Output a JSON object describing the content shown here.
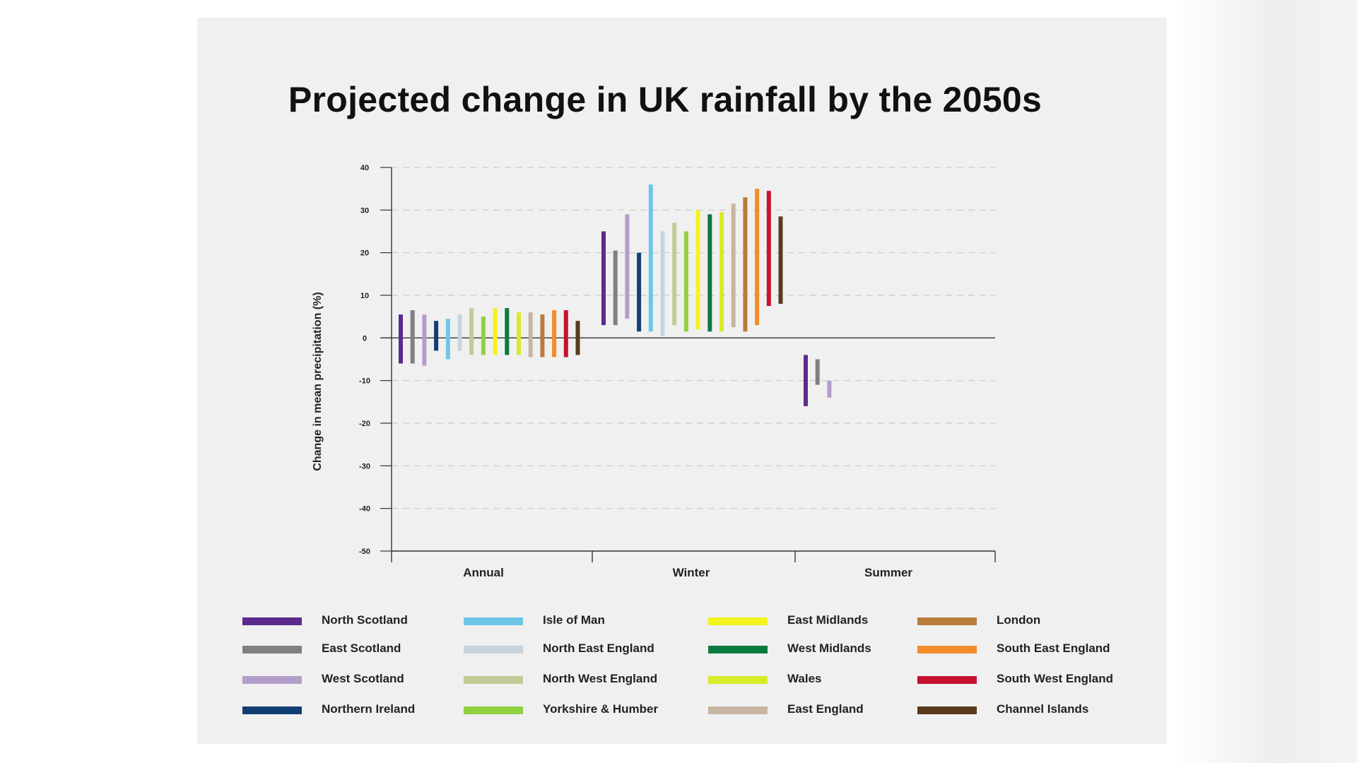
{
  "chart_data": {
    "type": "bar",
    "subtype": "floating-range",
    "title": "Projected change in UK rainfall by the 2050s",
    "ylabel": "Change in mean precipitation (%)",
    "xlabel": "",
    "ylim": [
      -50,
      40
    ],
    "yticks": [
      "40",
      "30",
      "20",
      "10",
      "0",
      "-10",
      "-20",
      "-30",
      "-40",
      "-50"
    ],
    "grid": true,
    "legend_position": "bottom",
    "categories": [
      "Annual",
      "Winter",
      "Summer"
    ],
    "series": [
      {
        "name": "North Scotland",
        "color": "#5b2a8c",
        "ranges": [
          [
            -6,
            5.5
          ],
          [
            3,
            25
          ],
          [
            -16,
            -4
          ]
        ]
      },
      {
        "name": "East Scotland",
        "color": "#808080",
        "ranges": [
          [
            -6,
            6.5
          ],
          [
            3,
            20.5
          ],
          [
            -11,
            -5
          ]
        ]
      },
      {
        "name": "West Scotland",
        "color": "#b49ccb",
        "ranges": [
          [
            -6.5,
            5.5
          ],
          [
            4.5,
            29
          ],
          [
            -14,
            -10
          ]
        ]
      },
      {
        "name": "Northern Ireland",
        "color": "#123f73",
        "ranges": [
          [
            -3,
            4
          ],
          [
            1.5,
            20
          ],
          null
        ]
      },
      {
        "name": "Isle of Man",
        "color": "#6ec6e6",
        "ranges": [
          [
            -5,
            4.5
          ],
          [
            1.5,
            36
          ],
          null
        ]
      },
      {
        "name": "North East England",
        "color": "#c8d3dc",
        "ranges": [
          [
            -3,
            5.5
          ],
          [
            0.5,
            25
          ],
          null
        ]
      },
      {
        "name": "North West England",
        "color": "#bfcc96",
        "ranges": [
          [
            -4,
            7
          ],
          [
            3,
            27
          ],
          null
        ]
      },
      {
        "name": "Yorkshire & Humber",
        "color": "#8fd13f",
        "ranges": [
          [
            -4,
            5
          ],
          [
            1.5,
            25
          ],
          null
        ]
      },
      {
        "name": "East Midlands",
        "color": "#f3f320",
        "ranges": [
          [
            -4,
            7
          ],
          [
            2,
            30
          ],
          null
        ]
      },
      {
        "name": "West Midlands",
        "color": "#0c7a3e",
        "ranges": [
          [
            -4,
            7
          ],
          [
            1.5,
            29
          ],
          null
        ]
      },
      {
        "name": "Wales",
        "color": "#d8ea26",
        "ranges": [
          [
            -4,
            6
          ],
          [
            1.5,
            29.5
          ],
          null
        ]
      },
      {
        "name": "East England",
        "color": "#c7b4a2",
        "ranges": [
          [
            -4.5,
            6
          ],
          [
            2.5,
            31.5
          ],
          null
        ]
      },
      {
        "name": "London",
        "color": "#b97c3d",
        "ranges": [
          [
            -4.5,
            5.5
          ],
          [
            1.5,
            33
          ],
          null
        ]
      },
      {
        "name": "South East England",
        "color": "#f38c2a",
        "ranges": [
          [
            -4.5,
            6.5
          ],
          [
            3,
            35
          ],
          null
        ]
      },
      {
        "name": "South West England",
        "color": "#c8102e",
        "ranges": [
          [
            -4.5,
            6.5
          ],
          [
            7.5,
            34.5
          ],
          null
        ]
      },
      {
        "name": "Channel Islands",
        "color": "#5a3a1e",
        "ranges": [
          [
            -4,
            4
          ],
          [
            8,
            28.5
          ],
          null
        ]
      }
    ]
  }
}
